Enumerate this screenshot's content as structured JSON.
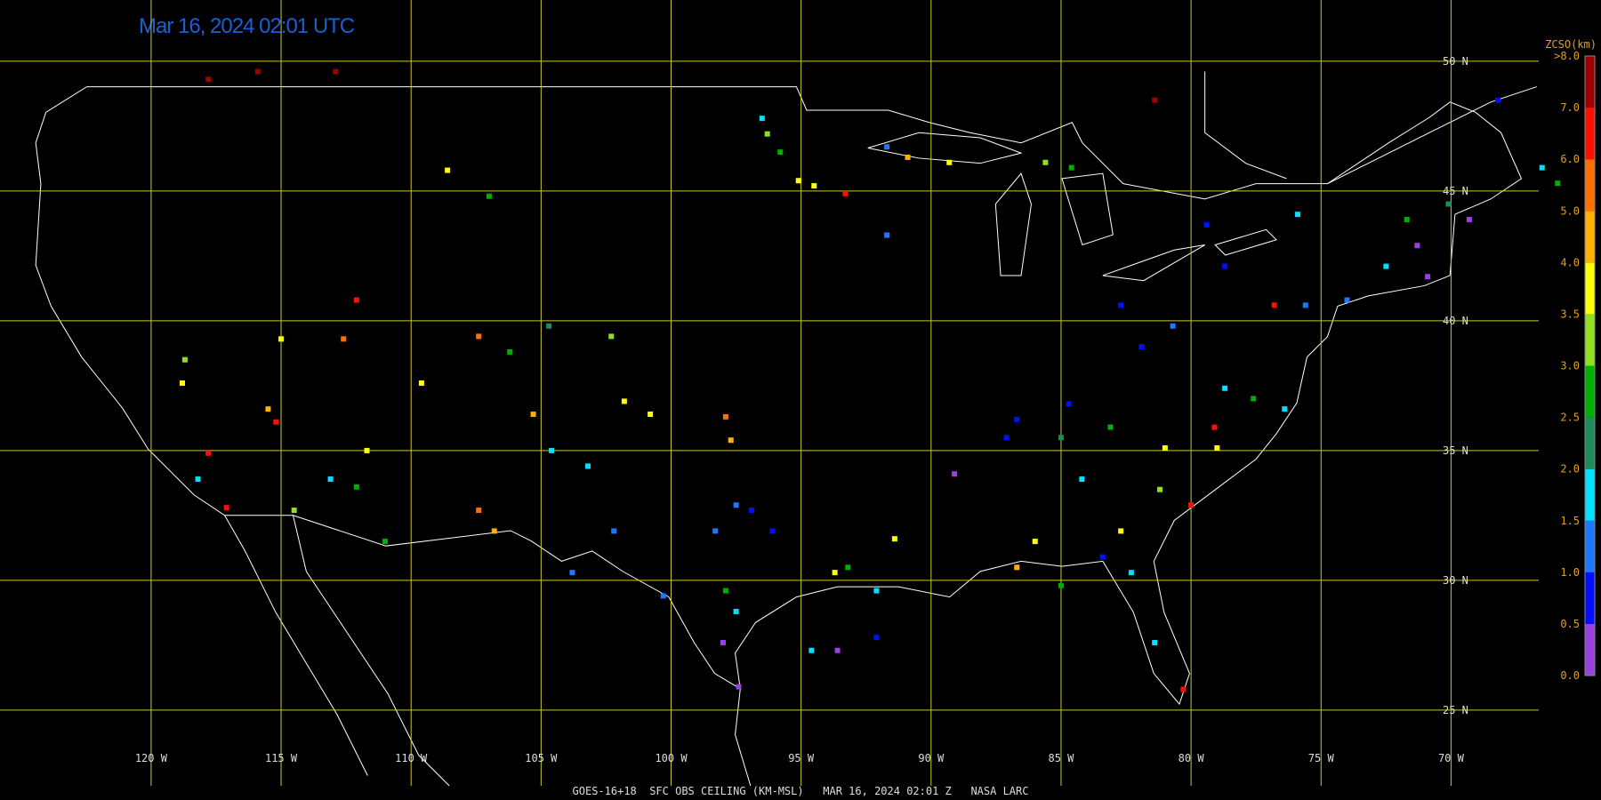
{
  "title": "Mar 16, 2024 02:01 UTC",
  "footer": "GOES-16+18  SFC OBS CEILING (KM-MSL)   MAR 16, 2024 02:01 Z   NASA LARC",
  "map": {
    "grid_color": "#c8c832",
    "lon_lines": [
      {
        "value": -120,
        "label": "120 W"
      },
      {
        "value": -115,
        "label": "115 W"
      },
      {
        "value": -110,
        "label": "110 W"
      },
      {
        "value": -105,
        "label": "105 W"
      },
      {
        "value": -100,
        "label": "100 W"
      },
      {
        "value": -95,
        "label": "95 W"
      },
      {
        "value": -90,
        "label": "90 W"
      },
      {
        "value": -85,
        "label": "85 W"
      },
      {
        "value": -80,
        "label": "80 W"
      },
      {
        "value": -75,
        "label": "75 W"
      },
      {
        "value": -70,
        "label": "70 W"
      }
    ],
    "lat_lines": [
      {
        "value": 50,
        "label": "50 N"
      },
      {
        "value": 45,
        "label": "45 N"
      },
      {
        "value": 40,
        "label": "40 N"
      },
      {
        "value": 35,
        "label": "35 N"
      },
      {
        "value": 30,
        "label": "30 N"
      },
      {
        "value": 25,
        "label": "25 N"
      }
    ]
  },
  "colorbar": {
    "title": "ZCSO(km)",
    "ticks": [
      {
        "value": 0,
        "label": "0.0"
      },
      {
        "value": 0.5,
        "label": "0.5"
      },
      {
        "value": 1,
        "label": "1.0"
      },
      {
        "value": 1.5,
        "label": "1.5"
      },
      {
        "value": 2,
        "label": "2.0"
      },
      {
        "value": 2.5,
        "label": "2.5"
      },
      {
        "value": 3,
        "label": "3.0"
      },
      {
        "value": 3.5,
        "label": "3.5"
      },
      {
        "value": 4,
        "label": "4.0"
      },
      {
        "value": 5,
        "label": "5.0"
      },
      {
        "value": 6,
        "label": "6.0"
      },
      {
        "value": 7,
        "label": "7.0"
      },
      {
        "value": 8,
        "label": ">8.0"
      }
    ],
    "colors": [
      "#9a40e0",
      "#0010ff",
      "#1e78ff",
      "#00e0ff",
      "#1e8c5a",
      "#00b000",
      "#90e020",
      "#ffff00",
      "#ffb000",
      "#ff7000",
      "#ff1000",
      "#a00000"
    ]
  },
  "observations": {
    "lon": [
      -95.1,
      -94.5,
      -96.3,
      -95.8,
      -96.5,
      -93.3,
      -108.6,
      -107,
      -117.8,
      -115.9,
      -112.9,
      -81.4,
      -112.1,
      -112.6,
      -115,
      -118.7,
      -118.8,
      -115.2,
      -117.8,
      -118.2,
      -117.1,
      -115.5,
      -111.7,
      -112.1,
      -111,
      -113.1,
      -107.4,
      -106.2,
      -104.7,
      -105.3,
      -107.4,
      -106.8,
      -109.6,
      -104.6,
      -103.2,
      -101.8,
      -100.8,
      -97.7,
      -97.9,
      -96.9,
      -97.5,
      -96.1,
      -98.3,
      -97.9,
      -97.5,
      -98,
      -97.4,
      -100.3,
      -102.2,
      -103.8,
      -93.6,
      -92.1,
      -94.6,
      -93.2,
      -93.7,
      -91.4,
      -92.1,
      -89.1,
      -87.1,
      -86,
      -86.7,
      -85,
      -84.2,
      -82.7,
      -83.4,
      -81.2,
      -80,
      -81,
      -79,
      -86.7,
      -84.7,
      -82.7,
      -81.9,
      -80.7,
      -78.7,
      -76.4,
      -77.6,
      -79.1,
      -78.7,
      -76.8,
      -75.6,
      -74,
      -72.5,
      -70.9,
      -71.3,
      -71.7,
      -70.1,
      -69.3,
      -66.5,
      -65.9,
      -68.2,
      -84.6,
      -85.6,
      -89.3,
      -90.9,
      -91.7,
      -91.7,
      -79.4,
      -75.9,
      -81.4,
      -80.3,
      -82.3,
      -83.1,
      -85,
      -114.5,
      -102.3
    ],
    "lat": [
      45.4,
      45.2,
      47.2,
      46.5,
      47.8,
      44.9,
      45.8,
      44.8,
      49.3,
      49.6,
      49.6,
      48.5,
      40.8,
      39.3,
      39.3,
      38.5,
      37.6,
      36.1,
      34.9,
      33.9,
      32.8,
      36.6,
      35,
      33.6,
      31.5,
      33.9,
      39.4,
      38.8,
      39.8,
      36.4,
      32.7,
      31.9,
      37.6,
      35,
      34.4,
      36.9,
      36.4,
      35.4,
      36.3,
      32.7,
      32.9,
      31.9,
      31.9,
      29.6,
      28.8,
      27.6,
      25.9,
      29.4,
      31.9,
      30.3,
      27.3,
      27.8,
      27.3,
      30.5,
      30.3,
      31.6,
      29.6,
      34.1,
      35.5,
      31.5,
      30.5,
      29.8,
      33.9,
      31.9,
      30.9,
      33.5,
      32.9,
      35.1,
      35.1,
      36.2,
      36.8,
      40.6,
      39,
      39.8,
      37.4,
      36.6,
      37,
      35.9,
      42.1,
      40.6,
      40.6,
      40.8,
      42.1,
      41.7,
      42.9,
      43.9,
      44.5,
      43.9,
      45.9,
      45.3,
      48.5,
      45.9,
      46.1,
      46.1,
      46.3,
      46.7,
      43.3,
      43.7,
      44.1,
      27.6,
      25.8,
      30.3,
      35.9,
      35.5,
      32.7,
      39.4
    ],
    "ceiling": [
      3.8,
      3.8,
      3.2,
      2.8,
      1.8,
      6.5,
      3.8,
      2.8,
      7.2,
      7.2,
      7.2,
      7.2,
      6.5,
      5.5,
      3.8,
      3.2,
      3.8,
      6.5,
      6.5,
      1.8,
      6.5,
      4.6,
      3.8,
      2.8,
      2.8,
      1.8,
      5.5,
      2.8,
      2.2,
      4.6,
      5.5,
      4.6,
      3.8,
      1.8,
      1.8,
      3.8,
      3.8,
      4.6,
      5.5,
      0.8,
      1.2,
      0.8,
      1.2,
      2.8,
      1.8,
      0.3,
      0.3,
      1.2,
      1.2,
      1.2,
      0.3,
      0.8,
      1.8,
      2.8,
      3.8,
      3.8,
      1.8,
      0.3,
      0.8,
      3.8,
      4.6,
      2.8,
      1.8,
      3.8,
      0.8,
      3.2,
      6.5,
      3.8,
      3.8,
      0.8,
      0.8,
      0.8,
      0.8,
      1.2,
      1.8,
      1.8,
      2.8,
      6.5,
      0.8,
      6.5,
      1.2,
      1.2,
      1.8,
      0.3,
      0.3,
      2.8,
      2.2,
      0.3,
      1.8,
      2.8,
      0.8,
      2.8,
      3.2,
      3.8,
      4.6,
      1.2,
      1.2,
      0.8,
      1.8,
      1.8,
      6.5,
      1.8,
      2.8,
      2.2,
      3.2,
      3.2
    ]
  }
}
